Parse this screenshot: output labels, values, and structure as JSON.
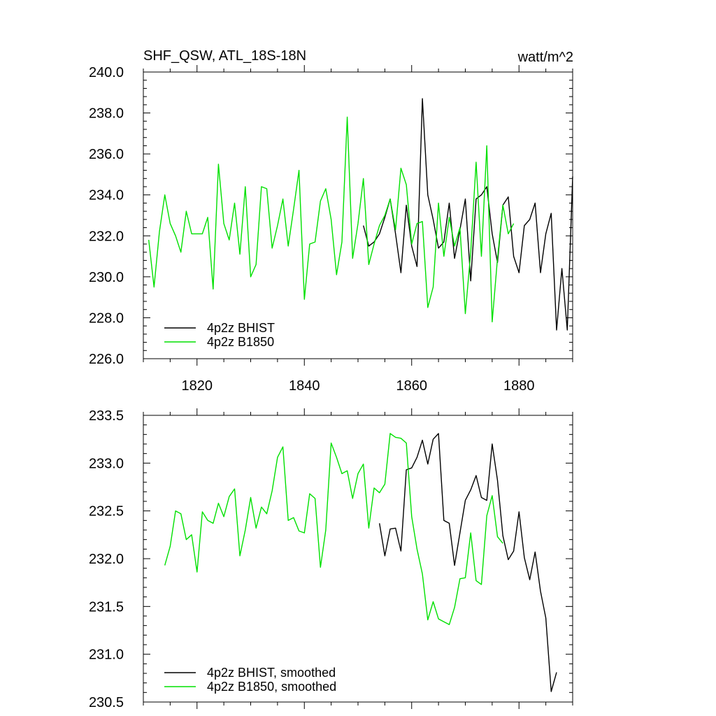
{
  "chart_data": [
    {
      "type": "line",
      "title": "SHF_QSW, ATL_18S-18N",
      "units": "watt/m^2",
      "xlim": [
        1810,
        1890
      ],
      "ylim": [
        226.0,
        240.0
      ],
      "xticks": [
        1820,
        1840,
        1860,
        1880
      ],
      "xtick_labels": [
        "1820",
        "1840",
        "1860",
        "1880"
      ],
      "yticks": [
        226.0,
        228.0,
        230.0,
        232.0,
        234.0,
        236.0,
        238.0,
        240.0
      ],
      "ytick_labels": [
        "226.0",
        "228.0",
        "230.0",
        "232.0",
        "234.0",
        "236.0",
        "238.0",
        "240.0"
      ],
      "legend_position": "bottom-left",
      "series": [
        {
          "name": "4p2z BHIST",
          "color": "#000000",
          "x": [
            1851,
            1852,
            1853,
            1854,
            1855,
            1856,
            1857,
            1858,
            1859,
            1860,
            1861,
            1862,
            1863,
            1864,
            1865,
            1866,
            1867,
            1868,
            1869,
            1870,
            1871,
            1872,
            1873,
            1874,
            1875,
            1876,
            1877,
            1878,
            1879,
            1880,
            1881,
            1882,
            1883,
            1884,
            1885,
            1886,
            1887,
            1888,
            1889,
            1890
          ],
          "values": [
            232.5,
            231.5,
            231.7,
            232.1,
            232.9,
            233.8,
            232.1,
            230.2,
            233.5,
            231.5,
            230.5,
            238.7,
            234.0,
            232.8,
            231.4,
            231.7,
            233.6,
            230.9,
            232.3,
            233.8,
            229.8,
            233.8,
            234.0,
            234.4,
            232.1,
            230.7,
            233.5,
            233.9,
            231.0,
            230.2,
            232.5,
            232.8,
            233.6,
            230.2,
            232.1,
            233.1,
            227.4,
            230.4,
            227.4,
            234.9
          ]
        },
        {
          "name": "4p2z B1850",
          "color": "#00e000",
          "x": [
            1811,
            1812,
            1813,
            1814,
            1815,
            1816,
            1817,
            1818,
            1819,
            1820,
            1821,
            1822,
            1823,
            1824,
            1825,
            1826,
            1827,
            1828,
            1829,
            1830,
            1831,
            1832,
            1833,
            1834,
            1835,
            1836,
            1837,
            1838,
            1839,
            1840,
            1841,
            1842,
            1843,
            1844,
            1845,
            1846,
            1847,
            1848,
            1849,
            1850,
            1851,
            1852,
            1853,
            1854,
            1855,
            1856,
            1857,
            1858,
            1859,
            1860,
            1861,
            1862,
            1863,
            1864,
            1865,
            1866,
            1867,
            1868,
            1869,
            1870,
            1871,
            1872,
            1873,
            1874,
            1875,
            1876,
            1877,
            1878,
            1879
          ],
          "values": [
            231.8,
            229.5,
            232.2,
            234.0,
            232.6,
            232.0,
            231.2,
            233.2,
            232.1,
            232.1,
            232.1,
            232.9,
            229.4,
            235.5,
            232.6,
            231.8,
            233.6,
            231.1,
            234.4,
            230.0,
            230.6,
            234.4,
            234.3,
            231.4,
            232.5,
            233.8,
            231.5,
            233.3,
            235.2,
            228.9,
            231.6,
            231.7,
            233.7,
            234.3,
            232.8,
            230.1,
            231.7,
            237.8,
            230.9,
            232.6,
            234.8,
            230.6,
            231.6,
            232.5,
            233.0,
            233.8,
            232.3,
            235.3,
            234.5,
            231.6,
            232.6,
            232.7,
            228.5,
            229.5,
            233.6,
            231.0,
            232.9,
            231.5,
            232.4,
            228.2,
            231.2,
            235.6,
            231.0,
            236.4,
            227.8,
            230.9,
            233.5,
            232.1,
            232.6
          ]
        }
      ]
    },
    {
      "type": "line",
      "xlim": [
        1810,
        1890
      ],
      "ylim": [
        230.5,
        233.5
      ],
      "xticks": [
        1820,
        1840,
        1860,
        1880
      ],
      "yticks": [
        230.5,
        231.0,
        231.5,
        232.0,
        232.5,
        233.0,
        233.5
      ],
      "ytick_labels": [
        "230.5",
        "231.0",
        "231.5",
        "232.0",
        "232.5",
        "233.0",
        "233.5"
      ],
      "legend_position": "bottom-left",
      "series": [
        {
          "name": "4p2z BHIST, smoothed",
          "color": "#000000",
          "x": [
            1854,
            1855,
            1856,
            1857,
            1858,
            1859,
            1860,
            1861,
            1862,
            1863,
            1864,
            1865,
            1866,
            1867,
            1868,
            1869,
            1870,
            1871,
            1872,
            1873,
            1874,
            1875,
            1876,
            1877,
            1878,
            1879,
            1880,
            1881,
            1882,
            1883,
            1884,
            1885,
            1886,
            1887
          ],
          "values": [
            232.37,
            232.03,
            232.31,
            232.32,
            232.08,
            232.93,
            232.95,
            233.06,
            233.24,
            232.99,
            233.25,
            233.31,
            232.4,
            232.37,
            231.93,
            232.27,
            232.61,
            232.72,
            232.87,
            232.64,
            232.61,
            233.2,
            232.82,
            232.24,
            231.99,
            232.08,
            232.49,
            232.01,
            231.78,
            232.07,
            231.66,
            231.38,
            230.61,
            230.81
          ]
        },
        {
          "name": "4p2z B1850, smoothed",
          "color": "#00e000",
          "x": [
            1814,
            1815,
            1816,
            1817,
            1818,
            1819,
            1820,
            1821,
            1822,
            1823,
            1824,
            1825,
            1826,
            1827,
            1828,
            1829,
            1830,
            1831,
            1832,
            1833,
            1834,
            1835,
            1836,
            1837,
            1838,
            1839,
            1840,
            1841,
            1842,
            1843,
            1844,
            1845,
            1846,
            1847,
            1848,
            1849,
            1850,
            1851,
            1852,
            1853,
            1854,
            1855,
            1856,
            1857,
            1858,
            1859,
            1860,
            1861,
            1862,
            1863,
            1864,
            1865,
            1866,
            1867,
            1868,
            1869,
            1870,
            1871,
            1872,
            1873,
            1874,
            1875,
            1876,
            1877
          ],
          "values": [
            231.93,
            232.13,
            232.5,
            232.47,
            232.2,
            232.25,
            231.86,
            232.49,
            232.4,
            232.37,
            232.58,
            232.44,
            232.65,
            232.73,
            232.03,
            232.3,
            232.64,
            232.32,
            232.54,
            232.47,
            232.71,
            233.06,
            233.17,
            232.4,
            232.43,
            232.29,
            232.27,
            232.68,
            232.63,
            231.91,
            232.3,
            233.21,
            233.06,
            232.89,
            232.92,
            232.63,
            232.89,
            232.99,
            232.32,
            232.74,
            232.69,
            232.78,
            233.31,
            233.27,
            233.26,
            233.21,
            232.44,
            232.1,
            231.84,
            231.36,
            231.55,
            231.37,
            231.34,
            231.31,
            231.49,
            231.79,
            231.8,
            232.27,
            231.77,
            231.73,
            232.45,
            232.66,
            232.23,
            232.16
          ]
        }
      ]
    }
  ]
}
